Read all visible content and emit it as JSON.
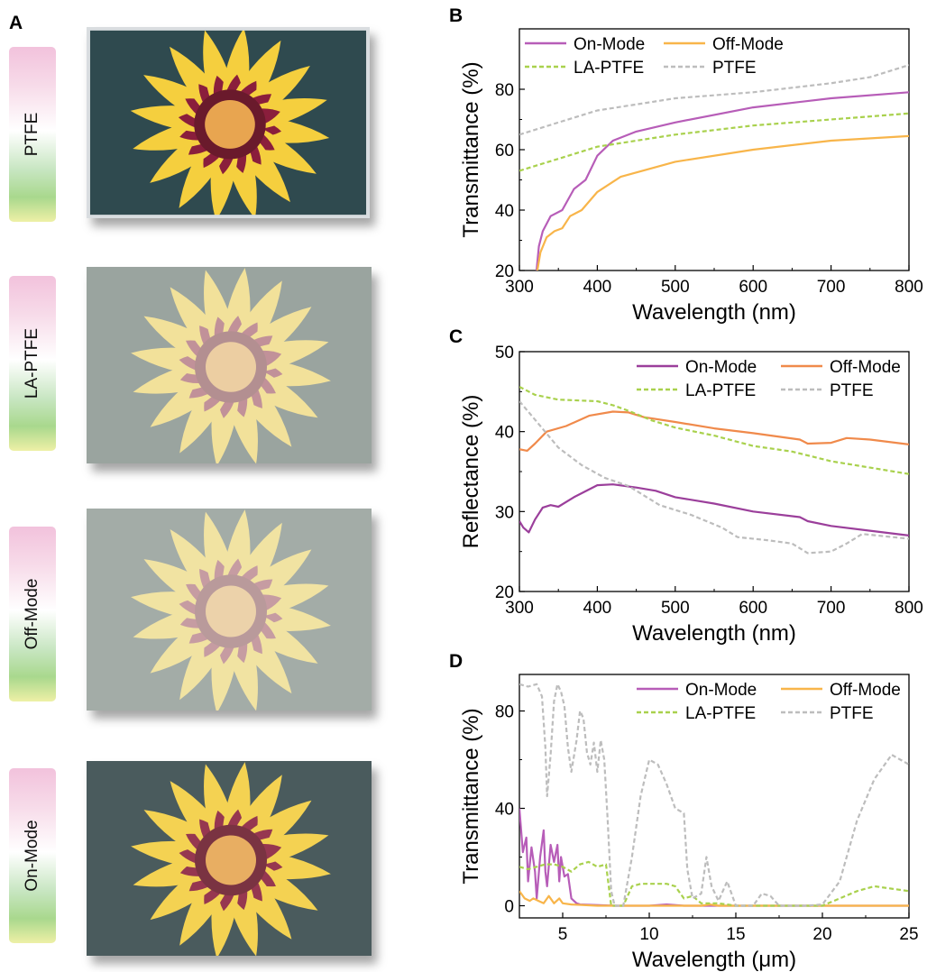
{
  "panel_letters": [
    "A",
    "B",
    "C",
    "D"
  ],
  "photos": [
    {
      "label": "PTFE",
      "haze": 0.0
    },
    {
      "label": "LA-PTFE",
      "haze": 0.55
    },
    {
      "label": "Off-Mode",
      "haze": 0.6
    },
    {
      "label": "On-Mode",
      "haze": 0.12
    }
  ],
  "series_colors": {
    "On-Mode": "#b75db8",
    "Off-Mode": "#f8b54a",
    "LA-PTFE": "#a9d14d",
    "PTFE": "#bdbdbd"
  },
  "chart_data": [
    {
      "panel": "B",
      "type": "line",
      "xlabel": "Wavelength (nm)",
      "ylabel": "Transmittance (%)",
      "xlim": [
        300,
        800
      ],
      "ylim": [
        20,
        100
      ],
      "xticks": [
        300,
        400,
        500,
        600,
        700,
        800
      ],
      "yticks": [
        20,
        40,
        60,
        80
      ],
      "legend": [
        "On-Mode",
        "Off-Mode",
        "LA-PTFE",
        "PTFE"
      ],
      "series": [
        {
          "name": "On-Mode",
          "style": "solid",
          "color": "#b75db8",
          "points": [
            [
              322,
              20
            ],
            [
              325,
              28
            ],
            [
              330,
              33
            ],
            [
              340,
              38
            ],
            [
              355,
              40
            ],
            [
              370,
              47
            ],
            [
              385,
              50
            ],
            [
              400,
              58
            ],
            [
              420,
              63
            ],
            [
              450,
              66
            ],
            [
              500,
              69
            ],
            [
              600,
              74
            ],
            [
              700,
              77
            ],
            [
              800,
              79
            ]
          ]
        },
        {
          "name": "Off-Mode",
          "style": "solid",
          "color": "#f8b54a",
          "points": [
            [
              323,
              20
            ],
            [
              327,
              26
            ],
            [
              335,
              31
            ],
            [
              345,
              33
            ],
            [
              355,
              34
            ],
            [
              365,
              38
            ],
            [
              380,
              40
            ],
            [
              400,
              46
            ],
            [
              430,
              51
            ],
            [
              500,
              56
            ],
            [
              600,
              60
            ],
            [
              700,
              63
            ],
            [
              800,
              64.5
            ]
          ]
        },
        {
          "name": "LA-PTFE",
          "style": "dashed",
          "color": "#a9d14d",
          "points": [
            [
              300,
              53
            ],
            [
              350,
              57
            ],
            [
              400,
              61
            ],
            [
              450,
              63
            ],
            [
              500,
              65
            ],
            [
              600,
              68
            ],
            [
              700,
              70
            ],
            [
              800,
              72
            ]
          ]
        },
        {
          "name": "PTFE",
          "style": "dashed",
          "color": "#bdbdbd",
          "points": [
            [
              300,
              65
            ],
            [
              350,
              69
            ],
            [
              400,
              73
            ],
            [
              450,
              75
            ],
            [
              500,
              77
            ],
            [
              600,
              79
            ],
            [
              700,
              82
            ],
            [
              750,
              84
            ],
            [
              800,
              88
            ]
          ]
        }
      ]
    },
    {
      "panel": "C",
      "type": "line",
      "xlabel": "Wavelength (nm)",
      "ylabel": "Reflectance (%)",
      "xlim": [
        300,
        800
      ],
      "ylim": [
        20,
        50
      ],
      "xticks": [
        300,
        400,
        500,
        600,
        700,
        800
      ],
      "yticks": [
        20,
        30,
        40,
        50
      ],
      "legend": [
        "On-Mode",
        "Off-Mode",
        "LA-PTFE",
        "PTFE"
      ],
      "series": [
        {
          "name": "On-Mode",
          "style": "solid",
          "color": "#9b3f9b",
          "points": [
            [
              300,
              28.8
            ],
            [
              305,
              28
            ],
            [
              312,
              27.4
            ],
            [
              320,
              29
            ],
            [
              330,
              30.5
            ],
            [
              340,
              30.8
            ],
            [
              350,
              30.6
            ],
            [
              370,
              31.8
            ],
            [
              400,
              33.3
            ],
            [
              420,
              33.4
            ],
            [
              450,
              33
            ],
            [
              475,
              32.6
            ],
            [
              500,
              31.8
            ],
            [
              550,
              31
            ],
            [
              600,
              30
            ],
            [
              660,
              29.3
            ],
            [
              670,
              28.8
            ],
            [
              700,
              28.2
            ],
            [
              750,
              27.6
            ],
            [
              800,
              27
            ]
          ]
        },
        {
          "name": "Off-Mode",
          "style": "solid",
          "color": "#f08a4b",
          "points": [
            [
              300,
              37.8
            ],
            [
              310,
              37.6
            ],
            [
              320,
              38.5
            ],
            [
              335,
              40
            ],
            [
              360,
              40.7
            ],
            [
              390,
              42
            ],
            [
              420,
              42.5
            ],
            [
              440,
              42.4
            ],
            [
              460,
              41.8
            ],
            [
              500,
              41.2
            ],
            [
              550,
              40.4
            ],
            [
              600,
              39.8
            ],
            [
              660,
              39
            ],
            [
              670,
              38.5
            ],
            [
              700,
              38.6
            ],
            [
              720,
              39.2
            ],
            [
              750,
              39
            ],
            [
              800,
              38.4
            ]
          ]
        },
        {
          "name": "LA-PTFE",
          "style": "dashed",
          "color": "#a9d14d",
          "points": [
            [
              300,
              45.6
            ],
            [
              320,
              44.6
            ],
            [
              350,
              44
            ],
            [
              400,
              43.8
            ],
            [
              420,
              43.3
            ],
            [
              440,
              42.6
            ],
            [
              470,
              41.4
            ],
            [
              500,
              40.5
            ],
            [
              550,
              39.5
            ],
            [
              600,
              38.2
            ],
            [
              650,
              37.5
            ],
            [
              700,
              36.3
            ],
            [
              750,
              35.5
            ],
            [
              800,
              34.7
            ]
          ]
        },
        {
          "name": "PTFE",
          "style": "dashed",
          "color": "#bdbdbd",
          "points": [
            [
              300,
              43.8
            ],
            [
              320,
              41.5
            ],
            [
              350,
              38
            ],
            [
              380,
              35.8
            ],
            [
              410,
              34.2
            ],
            [
              440,
              33.2
            ],
            [
              460,
              32
            ],
            [
              480,
              30.8
            ],
            [
              520,
              29.6
            ],
            [
              560,
              28
            ],
            [
              580,
              26.8
            ],
            [
              620,
              26.4
            ],
            [
              650,
              26
            ],
            [
              670,
              24.8
            ],
            [
              700,
              25
            ],
            [
              720,
              26
            ],
            [
              740,
              27.2
            ],
            [
              800,
              26.6
            ]
          ]
        }
      ]
    },
    {
      "panel": "D",
      "type": "line",
      "xlabel": "Wavelength (μm)",
      "ylabel": "Transmittance (%)",
      "xlim": [
        2.5,
        25
      ],
      "ylim": [
        -5,
        95
      ],
      "xticks": [
        5,
        10,
        15,
        20,
        25
      ],
      "yticks": [
        0,
        40,
        80
      ],
      "legend": [
        "On-Mode",
        "Off-Mode",
        "LA-PTFE",
        "PTFE"
      ],
      "series": [
        {
          "name": "On-Mode",
          "style": "solid",
          "color": "#b75db8",
          "points": [
            [
              2.5,
              40
            ],
            [
              2.7,
              22
            ],
            [
              2.9,
              28
            ],
            [
              3.0,
              10
            ],
            [
              3.2,
              24
            ],
            [
              3.4,
              14
            ],
            [
              3.5,
              3
            ],
            [
              3.7,
              20
            ],
            [
              3.9,
              31
            ],
            [
              4.0,
              14
            ],
            [
              4.1,
              8
            ],
            [
              4.3,
              25
            ],
            [
              4.5,
              18
            ],
            [
              4.7,
              25
            ],
            [
              4.8,
              10
            ],
            [
              4.9,
              20
            ],
            [
              5.1,
              12
            ],
            [
              5.3,
              13
            ],
            [
              5.5,
              3
            ],
            [
              5.8,
              1
            ],
            [
              6.0,
              0.5
            ],
            [
              8,
              0
            ],
            [
              10,
              0
            ],
            [
              11,
              0.5
            ],
            [
              12,
              0
            ],
            [
              25,
              0
            ]
          ]
        },
        {
          "name": "Off-Mode",
          "style": "solid",
          "color": "#f8b54a",
          "points": [
            [
              2.5,
              6
            ],
            [
              2.8,
              3
            ],
            [
              3.1,
              2
            ],
            [
              3.3,
              3
            ],
            [
              3.6,
              2
            ],
            [
              3.9,
              1
            ],
            [
              4.2,
              4
            ],
            [
              4.5,
              1
            ],
            [
              4.8,
              3
            ],
            [
              5.0,
              1
            ],
            [
              5.5,
              0.5
            ],
            [
              7,
              0
            ],
            [
              13,
              0
            ],
            [
              13.5,
              0.5
            ],
            [
              14,
              0
            ],
            [
              25,
              0
            ]
          ]
        },
        {
          "name": "LA-PTFE",
          "style": "dashed",
          "color": "#a9d14d",
          "points": [
            [
              2.5,
              16
            ],
            [
              3.0,
              15
            ],
            [
              3.5,
              16
            ],
            [
              4.0,
              17
            ],
            [
              4.5,
              17
            ],
            [
              5.0,
              16
            ],
            [
              5.5,
              14
            ],
            [
              6.0,
              17
            ],
            [
              6.5,
              18
            ],
            [
              7.0,
              16
            ],
            [
              7.5,
              17
            ],
            [
              7.8,
              0
            ],
            [
              8.5,
              0
            ],
            [
              9.0,
              8
            ],
            [
              9.5,
              9
            ],
            [
              10,
              9
            ],
            [
              11,
              9
            ],
            [
              11.5,
              8
            ],
            [
              12,
              3
            ],
            [
              12.5,
              4
            ],
            [
              13,
              1
            ],
            [
              14,
              1
            ],
            [
              15,
              0
            ],
            [
              20,
              0
            ],
            [
              21,
              3
            ],
            [
              22,
              6
            ],
            [
              23,
              8
            ],
            [
              24,
              7
            ],
            [
              25,
              6
            ]
          ]
        },
        {
          "name": "PTFE",
          "style": "dashed",
          "color": "#bdbdbd",
          "points": [
            [
              2.5,
              91
            ],
            [
              3.0,
              90
            ],
            [
              3.5,
              91
            ],
            [
              3.8,
              86
            ],
            [
              4.0,
              65
            ],
            [
              4.1,
              45
            ],
            [
              4.3,
              62
            ],
            [
              4.5,
              84
            ],
            [
              4.7,
              91
            ],
            [
              4.9,
              88
            ],
            [
              5.1,
              82
            ],
            [
              5.3,
              65
            ],
            [
              5.5,
              55
            ],
            [
              5.8,
              68
            ],
            [
              6.0,
              80
            ],
            [
              6.2,
              77
            ],
            [
              6.4,
              63
            ],
            [
              6.6,
              58
            ],
            [
              6.8,
              67
            ],
            [
              7.0,
              55
            ],
            [
              7.2,
              68
            ],
            [
              7.4,
              60
            ],
            [
              7.6,
              35
            ],
            [
              7.8,
              6
            ],
            [
              8.0,
              0
            ],
            [
              8.5,
              0
            ],
            [
              9.0,
              20
            ],
            [
              9.5,
              45
            ],
            [
              10,
              60
            ],
            [
              10.5,
              58
            ],
            [
              11,
              50
            ],
            [
              11.5,
              40
            ],
            [
              12,
              38
            ],
            [
              12.2,
              15
            ],
            [
              12.5,
              3
            ],
            [
              13,
              5
            ],
            [
              13.3,
              20
            ],
            [
              13.6,
              8
            ],
            [
              14,
              2
            ],
            [
              14.5,
              10
            ],
            [
              15,
              0
            ],
            [
              16,
              0
            ],
            [
              16.5,
              5
            ],
            [
              17,
              4
            ],
            [
              17.5,
              0
            ],
            [
              19,
              0
            ],
            [
              20,
              0.5
            ],
            [
              21,
              10
            ],
            [
              22,
              35
            ],
            [
              23,
              52
            ],
            [
              24,
              62
            ],
            [
              25,
              58
            ]
          ]
        }
      ]
    }
  ]
}
